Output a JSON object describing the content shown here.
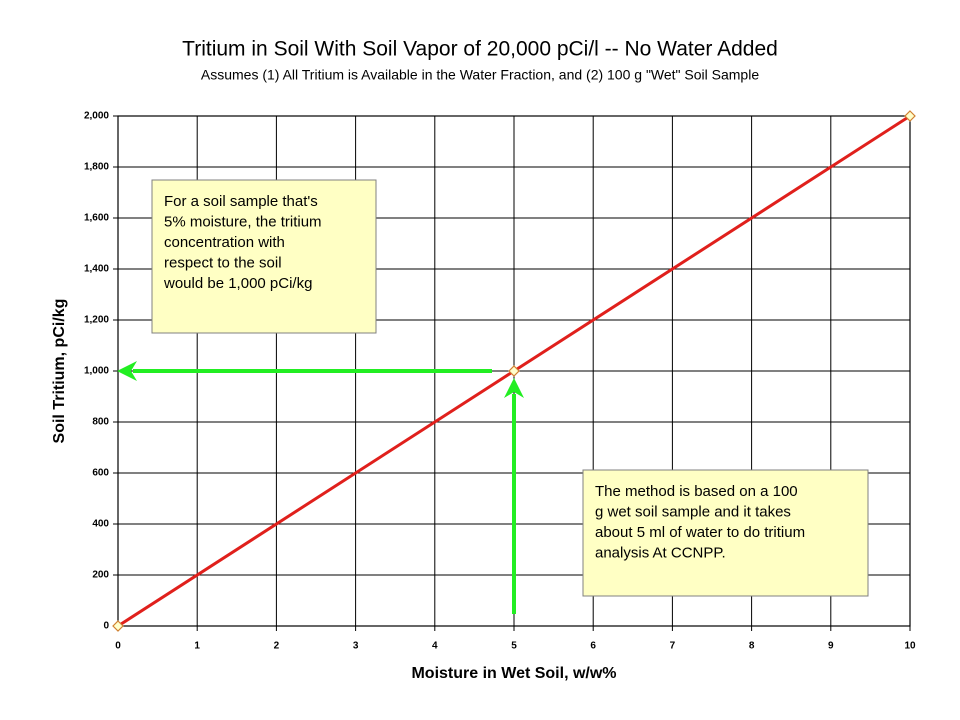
{
  "chart_data": {
    "type": "line",
    "title": "Tritium in Soil With Soil Vapor of 20,000 pCi/l -- No Water Added",
    "subtitle": "Assumes (1) All Tritium is Available in the Water Fraction, and (2) 100 g \"Wet\" Soil Sample",
    "x_label": "Moisture in Wet Soil, w/w%",
    "y_label": "Soil Tritium, pCi/kg",
    "x": [
      0,
      5,
      10
    ],
    "values": [
      0,
      1000,
      2000
    ],
    "color": "#e0201c",
    "xlim": [
      0,
      10
    ],
    "xticks": [
      0,
      1,
      2,
      3,
      4,
      5,
      6,
      7,
      8,
      9,
      10
    ],
    "ylim": [
      0,
      2000
    ],
    "yticks": [
      0,
      200,
      400,
      600,
      800,
      {
        "value": 1000,
        "label": "1,000"
      },
      {
        "value": 1200,
        "label": "1,200"
      },
      {
        "value": 1400,
        "label": "1,400"
      },
      {
        "value": 1600,
        "label": "1,600"
      },
      {
        "value": 1800,
        "label": "1,800"
      },
      {
        "value": 2000,
        "label": "2,000"
      }
    ],
    "grid": true,
    "annotations": [
      {
        "lines": [
          "For a soil sample that's",
          "5% moisture, the tritium",
          "concentration with",
          "respect to the soil",
          "would be 1,000 pCi/kg"
        ]
      },
      {
        "lines": [
          "The method is based on a 100",
          "g wet soil sample and it takes",
          "about 5 ml of water to do tritium",
          "analysis At CCNPP."
        ]
      }
    ]
  }
}
